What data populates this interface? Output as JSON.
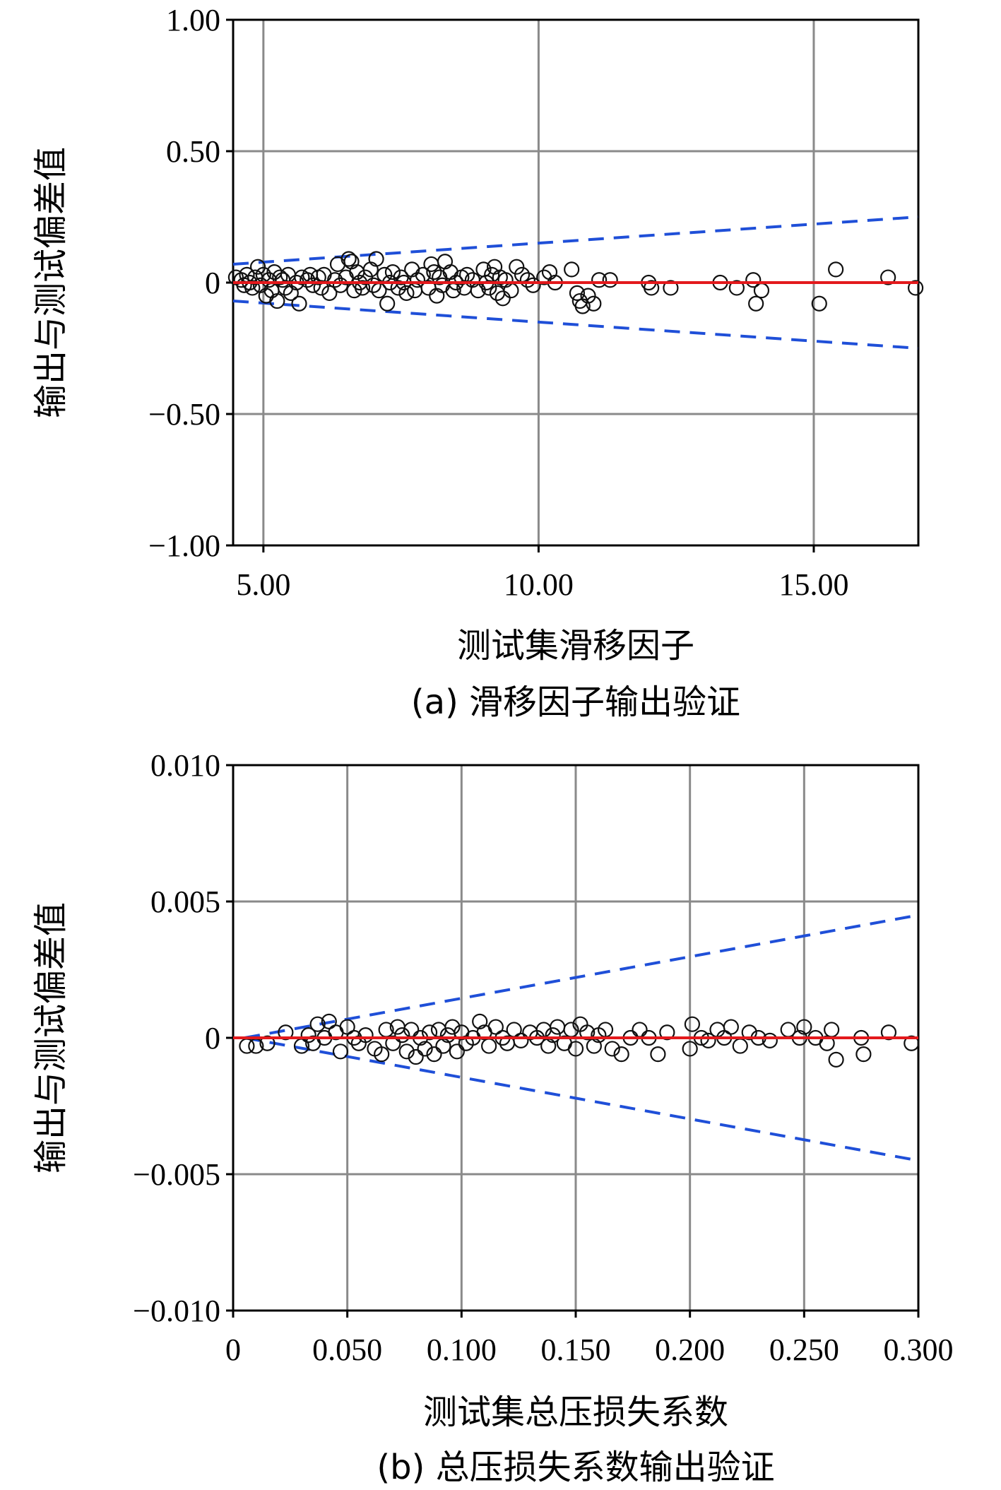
{
  "chart_data": [
    {
      "type": "scatter",
      "caption": "(a) 滑移因子输出验证",
      "xlabel": "测试集滑移因子",
      "ylabel": "输出与测试偏差值",
      "xlim": [
        4.45,
        16.9
      ],
      "ylim": [
        -1.0,
        1.0
      ],
      "x_ticks": [
        "5.00",
        "10.00",
        "15.00"
      ],
      "y_ticks": [
        "1.00",
        "0.50",
        "0",
        "−0.50",
        "−1.00"
      ],
      "grid": true,
      "reference_line": {
        "color": "#e3191c",
        "y": 0
      },
      "bounds": {
        "color": "#1f4fd8",
        "dash": true,
        "upper": [
          [
            4.45,
            0.07
          ],
          [
            16.9,
            0.25
          ]
        ],
        "lower": [
          [
            4.45,
            -0.07
          ],
          [
            16.9,
            -0.25
          ]
        ]
      },
      "points": [
        [
          4.5,
          0.02
        ],
        [
          4.6,
          0.01
        ],
        [
          4.65,
          -0.01
        ],
        [
          4.7,
          0.03
        ],
        [
          4.75,
          0.0
        ],
        [
          4.8,
          -0.02
        ],
        [
          4.85,
          0.02
        ],
        [
          4.9,
          0.06
        ],
        [
          4.95,
          -0.01
        ],
        [
          5.0,
          0.03
        ],
        [
          5.05,
          -0.05
        ],
        [
          5.1,
          0.01
        ],
        [
          5.15,
          -0.03
        ],
        [
          5.2,
          0.04
        ],
        [
          5.25,
          -0.07
        ],
        [
          5.3,
          0.02
        ],
        [
          5.35,
          0.01
        ],
        [
          5.4,
          -0.02
        ],
        [
          5.45,
          0.03
        ],
        [
          5.5,
          -0.04
        ],
        [
          5.6,
          0.0
        ],
        [
          5.65,
          -0.08
        ],
        [
          5.7,
          0.02
        ],
        [
          5.8,
          0.01
        ],
        [
          5.85,
          0.03
        ],
        [
          5.9,
          -0.01
        ],
        [
          6.0,
          0.02
        ],
        [
          6.05,
          -0.02
        ],
        [
          6.1,
          0.03
        ],
        [
          6.2,
          -0.04
        ],
        [
          6.3,
          0.01
        ],
        [
          6.35,
          0.07
        ],
        [
          6.4,
          -0.01
        ],
        [
          6.5,
          0.02
        ],
        [
          6.55,
          0.09
        ],
        [
          6.6,
          0.08
        ],
        [
          6.65,
          -0.03
        ],
        [
          6.7,
          0.04
        ],
        [
          6.75,
          0.0
        ],
        [
          6.8,
          -0.02
        ],
        [
          6.85,
          0.02
        ],
        [
          6.95,
          0.05
        ],
        [
          7.0,
          -0.01
        ],
        [
          7.05,
          0.09
        ],
        [
          7.1,
          -0.03
        ],
        [
          7.2,
          0.03
        ],
        [
          7.25,
          -0.08
        ],
        [
          7.3,
          0.0
        ],
        [
          7.35,
          0.04
        ],
        [
          7.45,
          -0.02
        ],
        [
          7.5,
          0.02
        ],
        [
          7.55,
          0.0
        ],
        [
          7.6,
          -0.04
        ],
        [
          7.7,
          0.05
        ],
        [
          7.75,
          -0.03
        ],
        [
          7.8,
          0.01
        ],
        [
          7.9,
          0.03
        ],
        [
          8.0,
          -0.02
        ],
        [
          8.05,
          0.07
        ],
        [
          8.1,
          0.04
        ],
        [
          8.15,
          -0.05
        ],
        [
          8.2,
          0.02
        ],
        [
          8.25,
          -0.01
        ],
        [
          8.3,
          0.08
        ],
        [
          8.4,
          0.04
        ],
        [
          8.45,
          -0.03
        ],
        [
          8.5,
          0.0
        ],
        [
          8.6,
          0.02
        ],
        [
          8.65,
          -0.02
        ],
        [
          8.7,
          0.03
        ],
        [
          8.8,
          0.01
        ],
        [
          8.9,
          -0.03
        ],
        [
          9.0,
          0.05
        ],
        [
          9.05,
          0.0
        ],
        [
          9.1,
          -0.02
        ],
        [
          9.15,
          0.03
        ],
        [
          9.2,
          0.06
        ],
        [
          9.25,
          -0.04
        ],
        [
          9.3,
          0.02
        ],
        [
          9.35,
          -0.06
        ],
        [
          9.4,
          0.01
        ],
        [
          9.5,
          -0.03
        ],
        [
          9.6,
          0.06
        ],
        [
          9.7,
          0.03
        ],
        [
          9.8,
          0.01
        ],
        [
          9.9,
          -0.01
        ],
        [
          10.1,
          0.02
        ],
        [
          10.2,
          0.04
        ],
        [
          10.3,
          0.0
        ],
        [
          10.6,
          0.05
        ],
        [
          10.7,
          -0.04
        ],
        [
          10.75,
          -0.07
        ],
        [
          10.8,
          -0.09
        ],
        [
          10.9,
          -0.05
        ],
        [
          11.0,
          -0.08
        ],
        [
          11.1,
          0.01
        ],
        [
          11.3,
          0.01
        ],
        [
          12.0,
          0.0
        ],
        [
          12.05,
          -0.02
        ],
        [
          12.4,
          -0.02
        ],
        [
          13.3,
          0.0
        ],
        [
          13.6,
          -0.02
        ],
        [
          13.9,
          0.01
        ],
        [
          13.95,
          -0.08
        ],
        [
          14.05,
          -0.03
        ],
        [
          15.1,
          -0.08
        ],
        [
          15.4,
          0.05
        ],
        [
          16.35,
          0.02
        ],
        [
          16.85,
          -0.02
        ]
      ]
    },
    {
      "type": "scatter",
      "caption": "(b) 总压损失系数输出验证",
      "xlabel": "测试集总压损失系数",
      "ylabel": "输出与测试偏差值",
      "xlim": [
        0,
        0.3
      ],
      "ylim": [
        -0.01,
        0.01
      ],
      "x_ticks": [
        "0",
        "0.050",
        "0.100",
        "0.150",
        "0.200",
        "0.250",
        "0.300"
      ],
      "y_ticks": [
        "0.010",
        "0.005",
        "0",
        "−0.005",
        "−0.010"
      ],
      "grid": true,
      "reference_line": {
        "color": "#e3191c",
        "y": 0
      },
      "bounds": {
        "color": "#1f4fd8",
        "dash": true,
        "upper": [
          [
            0.005,
            0.0
          ],
          [
            0.3,
            0.0045
          ]
        ],
        "lower": [
          [
            0.005,
            0.0
          ],
          [
            0.3,
            -0.0045
          ]
        ]
      },
      "points": [
        [
          0.006,
          -0.0003
        ],
        [
          0.01,
          -0.0003
        ],
        [
          0.015,
          -0.0002
        ],
        [
          0.023,
          0.0002
        ],
        [
          0.03,
          -0.0003
        ],
        [
          0.033,
          0.0001
        ],
        [
          0.035,
          -0.0002
        ],
        [
          0.037,
          0.0005
        ],
        [
          0.04,
          0.0
        ],
        [
          0.042,
          0.0006
        ],
        [
          0.045,
          0.0002
        ],
        [
          0.047,
          -0.0005
        ],
        [
          0.05,
          0.0004
        ],
        [
          0.053,
          0.0
        ],
        [
          0.055,
          -0.0002
        ],
        [
          0.058,
          0.0001
        ],
        [
          0.062,
          -0.0004
        ],
        [
          0.065,
          -0.0006
        ],
        [
          0.067,
          0.0003
        ],
        [
          0.07,
          -0.0002
        ],
        [
          0.072,
          0.0004
        ],
        [
          0.074,
          0.0001
        ],
        [
          0.076,
          -0.0005
        ],
        [
          0.078,
          0.0003
        ],
        [
          0.08,
          -0.0007
        ],
        [
          0.082,
          0.0
        ],
        [
          0.084,
          -0.0004
        ],
        [
          0.086,
          0.0002
        ],
        [
          0.088,
          -0.0006
        ],
        [
          0.09,
          0.0003
        ],
        [
          0.092,
          -0.0003
        ],
        [
          0.094,
          0.0001
        ],
        [
          0.096,
          0.0004
        ],
        [
          0.098,
          -0.0005
        ],
        [
          0.1,
          0.0002
        ],
        [
          0.102,
          -0.0002
        ],
        [
          0.105,
          0.0
        ],
        [
          0.108,
          0.0006
        ],
        [
          0.11,
          0.0002
        ],
        [
          0.112,
          -0.0003
        ],
        [
          0.115,
          0.0004
        ],
        [
          0.118,
          0.0
        ],
        [
          0.12,
          -0.0002
        ],
        [
          0.123,
          0.0003
        ],
        [
          0.126,
          -0.0001
        ],
        [
          0.13,
          0.0002
        ],
        [
          0.133,
          0.0
        ],
        [
          0.136,
          0.0003
        ],
        [
          0.138,
          -0.0003
        ],
        [
          0.14,
          0.0001
        ],
        [
          0.142,
          0.0004
        ],
        [
          0.145,
          -0.0002
        ],
        [
          0.148,
          0.0003
        ],
        [
          0.15,
          -0.0004
        ],
        [
          0.152,
          0.0005
        ],
        [
          0.155,
          0.0002
        ],
        [
          0.158,
          -0.0003
        ],
        [
          0.16,
          0.0001
        ],
        [
          0.163,
          0.0003
        ],
        [
          0.166,
          -0.0004
        ],
        [
          0.17,
          -0.0006
        ],
        [
          0.174,
          0.0
        ],
        [
          0.178,
          0.0003
        ],
        [
          0.182,
          0.0
        ],
        [
          0.186,
          -0.0006
        ],
        [
          0.19,
          0.0002
        ],
        [
          0.2,
          -0.0004
        ],
        [
          0.201,
          0.0005
        ],
        [
          0.205,
          0.0
        ],
        [
          0.208,
          -0.0001
        ],
        [
          0.212,
          0.0003
        ],
        [
          0.215,
          0.0
        ],
        [
          0.218,
          0.0004
        ],
        [
          0.222,
          -0.0003
        ],
        [
          0.226,
          0.0002
        ],
        [
          0.23,
          0.0
        ],
        [
          0.235,
          -0.0001
        ],
        [
          0.243,
          0.0003
        ],
        [
          0.248,
          0.0
        ],
        [
          0.25,
          0.0004
        ],
        [
          0.255,
          0.0
        ],
        [
          0.26,
          -0.0002
        ],
        [
          0.262,
          0.0003
        ],
        [
          0.264,
          -0.0008
        ],
        [
          0.275,
          0.0
        ],
        [
          0.276,
          -0.0006
        ],
        [
          0.287,
          0.0002
        ],
        [
          0.297,
          -0.0002
        ]
      ]
    }
  ]
}
